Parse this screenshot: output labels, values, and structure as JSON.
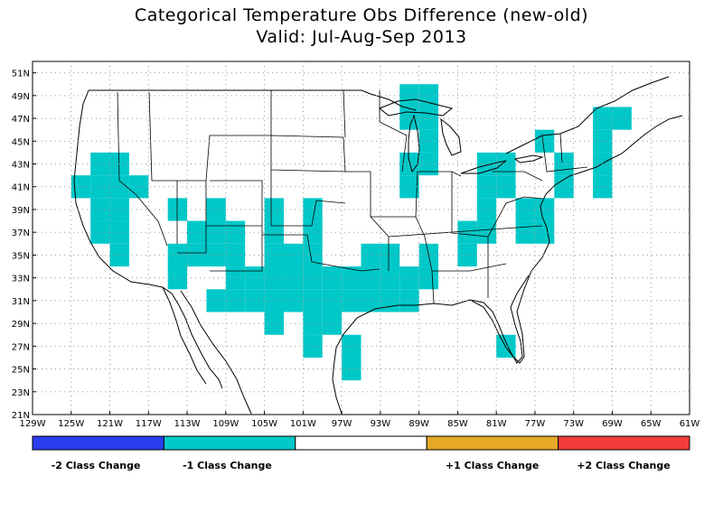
{
  "title": "Categorical Temperature Obs Difference (new-old)",
  "subtitle": "Valid: Jul-Aug-Sep 2013",
  "axes": {
    "lon_labels": [
      "129W",
      "125W",
      "121W",
      "117W",
      "113W",
      "109W",
      "105W",
      "101W",
      "97W",
      "93W",
      "89W",
      "85W",
      "81W",
      "77W",
      "73W",
      "69W",
      "65W",
      "61W"
    ],
    "lat_labels": [
      "21N",
      "23N",
      "25N",
      "27N",
      "29N",
      "31N",
      "33N",
      "35N",
      "37N",
      "39N",
      "41N",
      "43N",
      "45N",
      "47N",
      "49N",
      "51N"
    ],
    "lon_range": [
      -129,
      -61
    ],
    "lat_range": [
      21,
      52
    ],
    "grid": true
  },
  "colors": {
    "minus2": "#2a3ef0",
    "minus1": "#00c8c8",
    "zero": "#ffffff",
    "plus1": "#e6a827",
    "plus2": "#f23c3c",
    "cell": "#00c8c8"
  },
  "legend": [
    {
      "label": "-2 Class Change",
      "color": "#2a3ef0"
    },
    {
      "label": "-1 Class Change",
      "color": "#00c8c8"
    },
    {
      "label": "",
      "color": "#ffffff"
    },
    {
      "label": "+1 Class Change",
      "color": "#e6a827"
    },
    {
      "label": "+2 Class Change",
      "color": "#f23c3c"
    }
  ],
  "chart_data": {
    "type": "heatmap",
    "cell_size_deg": 2,
    "value_shown": "-1 Class Change",
    "cells_lonlat": [
      [
        -124,
        41
      ],
      [
        -122,
        41
      ],
      [
        -120,
        41
      ],
      [
        -118,
        41
      ],
      [
        -122,
        43
      ],
      [
        -120,
        43
      ],
      [
        -122,
        39
      ],
      [
        -120,
        39
      ],
      [
        -122,
        37
      ],
      [
        -120,
        37
      ],
      [
        -120,
        35
      ],
      [
        -114,
        39
      ],
      [
        -110,
        39
      ],
      [
        -112,
        37
      ],
      [
        -110,
        37
      ],
      [
        -108,
        37
      ],
      [
        -112,
        35
      ],
      [
        -110,
        35
      ],
      [
        -108,
        35
      ],
      [
        -114,
        35
      ],
      [
        -114,
        33
      ],
      [
        -108,
        33
      ],
      [
        -106,
        33
      ],
      [
        -104,
        33
      ],
      [
        -110,
        31
      ],
      [
        -108,
        31
      ],
      [
        -106,
        31
      ],
      [
        -104,
        31
      ],
      [
        -104,
        39
      ],
      [
        -104,
        37
      ],
      [
        -104,
        35
      ],
      [
        -100,
        39
      ],
      [
        -100,
        37
      ],
      [
        -100,
        35
      ],
      [
        -102,
        35
      ],
      [
        -102,
        33
      ],
      [
        -100,
        33
      ],
      [
        -98,
        33
      ],
      [
        -96,
        33
      ],
      [
        -94,
        33
      ],
      [
        -92,
        33
      ],
      [
        -102,
        31
      ],
      [
        -100,
        31
      ],
      [
        -98,
        31
      ],
      [
        -96,
        31
      ],
      [
        -94,
        31
      ],
      [
        -92,
        31
      ],
      [
        -104,
        29
      ],
      [
        -100,
        29
      ],
      [
        -98,
        29
      ],
      [
        -100,
        27
      ],
      [
        -96,
        27
      ],
      [
        -96,
        25
      ],
      [
        -94,
        35
      ],
      [
        -92,
        35
      ],
      [
        -90,
        33
      ],
      [
        -90,
        31
      ],
      [
        -88,
        33
      ],
      [
        -88,
        35
      ],
      [
        -90,
        43
      ],
      [
        -90,
        41
      ],
      [
        -88,
        45
      ],
      [
        -88,
        43
      ],
      [
        -90,
        49
      ],
      [
        -88,
        49
      ],
      [
        -90,
        47
      ],
      [
        -88,
        47
      ],
      [
        -84,
        35
      ],
      [
        -84,
        37
      ],
      [
        -82,
        43
      ],
      [
        -80,
        43
      ],
      [
        -82,
        41
      ],
      [
        -80,
        41
      ],
      [
        -82,
        39
      ],
      [
        -82,
        37
      ],
      [
        -78,
        39
      ],
      [
        -76,
        39
      ],
      [
        -78,
        37
      ],
      [
        -76,
        37
      ],
      [
        -76,
        45
      ],
      [
        -74,
        43
      ],
      [
        -74,
        41
      ],
      [
        -70,
        41
      ],
      [
        -70,
        43
      ],
      [
        -68,
        47
      ],
      [
        -70,
        47
      ],
      [
        -70,
        45
      ],
      [
        -80,
        27
      ]
    ]
  }
}
